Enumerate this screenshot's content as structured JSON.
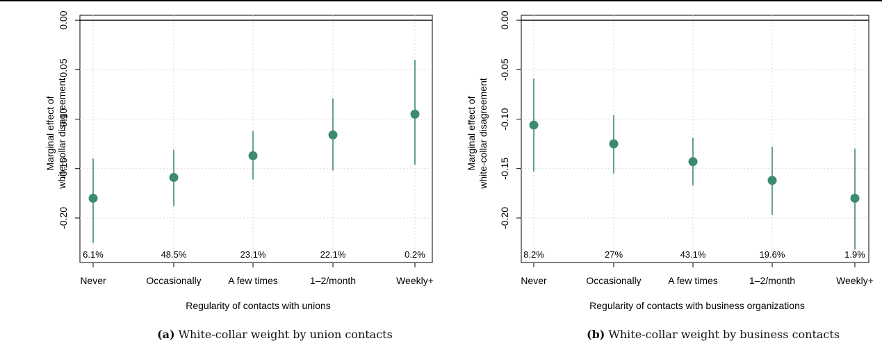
{
  "figure": {
    "panels": [
      {
        "tag": "(a)",
        "caption": "White-collar weight by union contacts"
      },
      {
        "tag": "(b)",
        "caption": "White-collar weight by business contacts"
      }
    ]
  },
  "chart_data": [
    {
      "type": "scatter",
      "title": "",
      "ylabel": "Marginal effect of white-collar disagreement",
      "xlabel": "Regularity of contacts with unions",
      "categories": [
        "Never",
        "Occasionally",
        "A few times",
        "1–2/month",
        "Weekly+"
      ],
      "yticks": [
        "0.00",
        "-0.05",
        "-0.10",
        "-0.15",
        "-0.20"
      ],
      "ylim": [
        -0.245,
        0.005
      ],
      "reference_line": 0,
      "grid": true,
      "point_color": "#3d8a72",
      "series": [
        {
          "values": [
            -0.18,
            -0.159,
            -0.137,
            -0.116,
            -0.095
          ],
          "ci_low": [
            -0.225,
            -0.188,
            -0.161,
            -0.152,
            -0.146
          ],
          "ci_high": [
            -0.14,
            -0.131,
            -0.112,
            -0.079,
            -0.04
          ]
        }
      ],
      "shares": [
        "6.1%",
        "48.5%",
        "23.1%",
        "22.1%",
        "0.2%"
      ]
    },
    {
      "type": "scatter",
      "title": "",
      "ylabel": "Marginal effect of white-collar disagreement",
      "xlabel": "Regularity of contacts with business organizations",
      "categories": [
        "Never",
        "Occasionally",
        "A few times",
        "1–2/month",
        "Weekly+"
      ],
      "yticks": [
        "0.00",
        "-0.05",
        "-0.10",
        "-0.15",
        "-0.20"
      ],
      "ylim": [
        -0.245,
        0.005
      ],
      "reference_line": 0,
      "grid": true,
      "point_color": "#3d8a72",
      "series": [
        {
          "values": [
            -0.106,
            -0.125,
            -0.143,
            -0.162,
            -0.18
          ],
          "ci_low": [
            -0.153,
            -0.155,
            -0.167,
            -0.197,
            -0.232
          ],
          "ci_high": [
            -0.059,
            -0.096,
            -0.119,
            -0.128,
            -0.13
          ]
        }
      ],
      "shares": [
        "8.2%",
        "27%",
        "43.1%",
        "19.6%",
        "1.9%"
      ]
    }
  ]
}
